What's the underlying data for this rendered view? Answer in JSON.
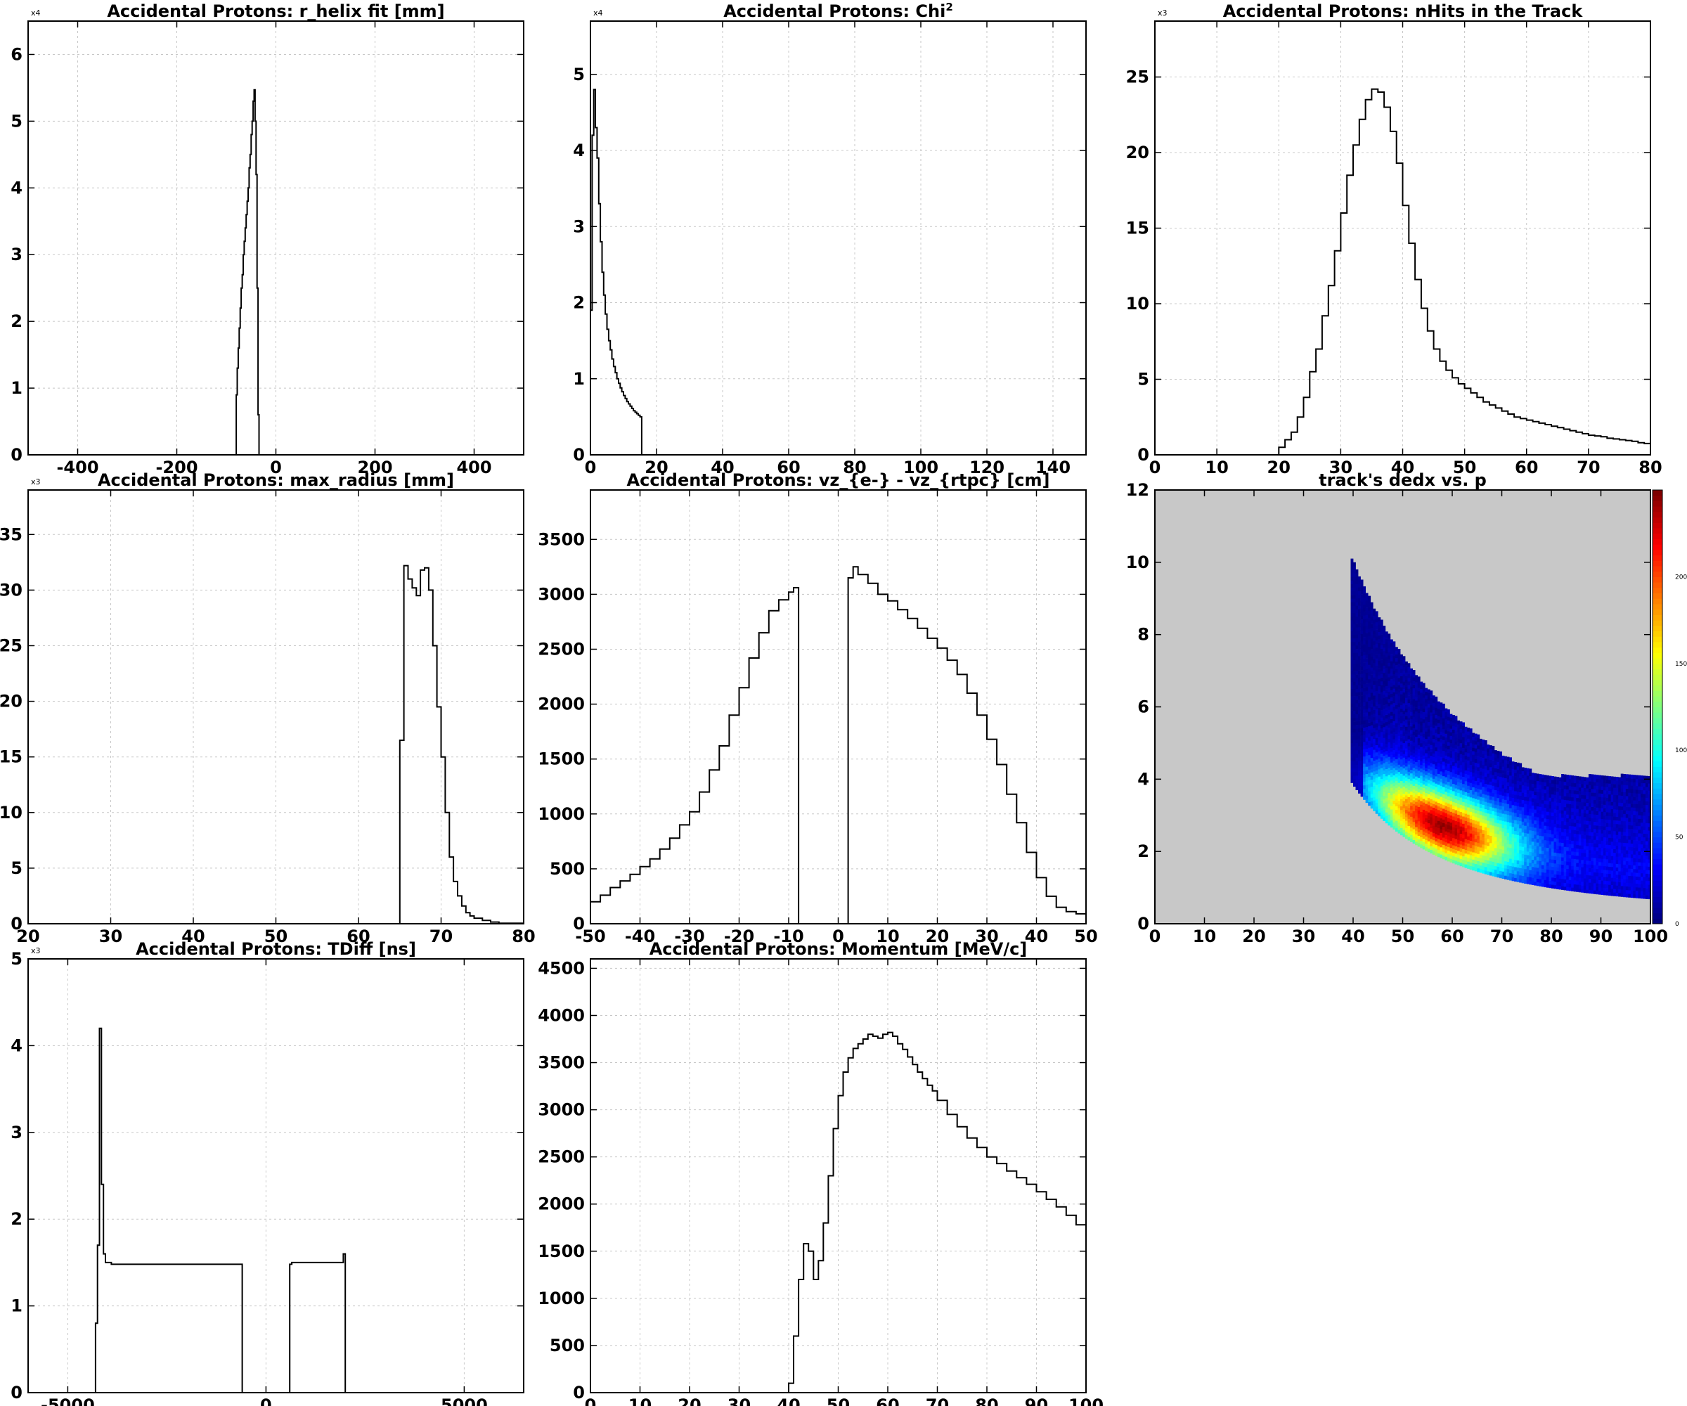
{
  "charts": [
    {
      "type": "step-histogram",
      "title": "Accidental Protons: r_helix fit [mm]",
      "multiplier": "x4",
      "xlim": [
        -500,
        500
      ],
      "ylim": [
        0,
        6.5
      ],
      "xticks": [
        "-400",
        "-200",
        "0",
        "200",
        "400"
      ],
      "yticks": [
        "0",
        "1",
        "2",
        "3",
        "4",
        "5",
        "6"
      ],
      "x": [
        -500,
        -82,
        -80,
        -78,
        -76,
        -74,
        -72,
        -70,
        -68,
        -66,
        -64,
        -62,
        -60,
        -58,
        -56,
        -54,
        -52,
        -50,
        -48,
        -46,
        -44,
        -42,
        -40,
        -38,
        -36,
        -34,
        -32,
        500
      ],
      "y": [
        0,
        0,
        0.9,
        1.3,
        1.6,
        1.9,
        2.2,
        2.5,
        2.7,
        3.0,
        3.2,
        3.4,
        3.6,
        3.8,
        4.0,
        4.3,
        4.5,
        4.8,
        5.0,
        5.3,
        5.47,
        5.0,
        4.2,
        2.5,
        0.6,
        0,
        0,
        0
      ]
    },
    {
      "type": "step-histogram",
      "title": "Accidental Protons: Chi",
      "title_sup": "2",
      "multiplier": "x4",
      "xlim": [
        0,
        150
      ],
      "ylim": [
        0,
        5.7
      ],
      "xticks": [
        "0",
        "20",
        "40",
        "60",
        "80",
        "100",
        "120",
        "140"
      ],
      "yticks": [
        "0",
        "1",
        "2",
        "3",
        "4",
        "5"
      ],
      "x": [
        0,
        0.5,
        1,
        1.5,
        2,
        2.5,
        3,
        3.5,
        4,
        4.5,
        5,
        5.5,
        6,
        6.5,
        7,
        7.5,
        8,
        8.5,
        9,
        9.5,
        10,
        10.5,
        11,
        11.5,
        12,
        12.5,
        13,
        13.5,
        14,
        14.5,
        15,
        15.5,
        16,
        150
      ],
      "y": [
        1.9,
        4.2,
        4.8,
        4.3,
        3.9,
        3.3,
        2.8,
        2.4,
        2.1,
        1.85,
        1.65,
        1.5,
        1.38,
        1.26,
        1.16,
        1.08,
        1.0,
        0.94,
        0.88,
        0.83,
        0.78,
        0.74,
        0.7,
        0.67,
        0.64,
        0.61,
        0.58,
        0.56,
        0.54,
        0.52,
        0.5,
        0,
        0,
        0
      ]
    },
    {
      "type": "step-histogram",
      "title": "Accidental Protons: nHits in the Track",
      "multiplier": "x3",
      "xlim": [
        0,
        80
      ],
      "ylim": [
        0,
        28.7
      ],
      "xticks": [
        "0",
        "10",
        "20",
        "30",
        "40",
        "50",
        "60",
        "70",
        "80"
      ],
      "yticks": [
        "0",
        "5",
        "10",
        "15",
        "20",
        "25"
      ],
      "x": [
        20,
        21,
        22,
        23,
        24,
        25,
        26,
        27,
        28,
        29,
        30,
        31,
        32,
        33,
        34,
        35,
        36,
        37,
        38,
        39,
        40,
        41,
        42,
        43,
        44,
        45,
        46,
        47,
        48,
        49,
        50,
        51,
        52,
        53,
        54,
        55,
        56,
        57,
        58,
        59,
        60,
        61,
        62,
        63,
        64,
        65,
        66,
        67,
        68,
        69,
        70,
        71,
        72,
        73,
        74,
        75,
        76,
        77,
        78,
        79,
        80
      ],
      "y": [
        0.5,
        1.0,
        1.5,
        2.5,
        3.8,
        5.5,
        7.0,
        9.2,
        11.2,
        13.5,
        16.0,
        18.5,
        20.5,
        22.2,
        23.5,
        24.2,
        24.0,
        23.0,
        21.4,
        19.3,
        16.5,
        14.0,
        11.6,
        9.7,
        8.2,
        7.0,
        6.2,
        5.6,
        5.1,
        4.7,
        4.4,
        4.1,
        3.8,
        3.5,
        3.3,
        3.1,
        2.9,
        2.7,
        2.5,
        2.4,
        2.3,
        2.2,
        2.1,
        2.0,
        1.9,
        1.8,
        1.7,
        1.6,
        1.5,
        1.4,
        1.3,
        1.25,
        1.2,
        1.1,
        1.05,
        1.0,
        0.95,
        0.9,
        0.8,
        0.75,
        0.7
      ]
    },
    {
      "type": "step-histogram",
      "title": "Accidental Protons: max_radius [mm]",
      "multiplier": "x3",
      "xlim": [
        20,
        80
      ],
      "ylim": [
        0,
        39
      ],
      "xticks": [
        "20",
        "30",
        "40",
        "50",
        "60",
        "70",
        "80"
      ],
      "yticks": [
        "0",
        "5",
        "10",
        "15",
        "20",
        "25",
        "30",
        "35"
      ],
      "x": [
        20,
        65,
        65.5,
        66,
        66.5,
        67,
        67.5,
        68,
        68.5,
        69,
        69.5,
        70,
        70.5,
        71,
        71.5,
        72,
        72.5,
        73,
        73.5,
        74,
        75,
        76,
        77,
        80
      ],
      "y": [
        0,
        16.5,
        32.2,
        31.0,
        30.2,
        29.5,
        31.8,
        32.0,
        30.0,
        25.0,
        19.5,
        15.0,
        10.0,
        6.0,
        3.8,
        2.5,
        1.6,
        1.0,
        0.7,
        0.5,
        0.3,
        0.15,
        0.05,
        0
      ]
    },
    {
      "type": "step-histogram",
      "title": "Accidental Protons: vz_{e-} - vz_{rtpc} [cm]",
      "xlim": [
        -50,
        50
      ],
      "ylim": [
        0,
        3950
      ],
      "xticks": [
        "-50",
        "-40",
        "-30",
        "-20",
        "-10",
        "0",
        "10",
        "20",
        "30",
        "40",
        "50"
      ],
      "yticks": [
        "0",
        "500",
        "1000",
        "1500",
        "2000",
        "2500",
        "3000",
        "3500"
      ],
      "x": [
        -50,
        -48,
        -46,
        -44,
        -42,
        -40,
        -38,
        -36,
        -34,
        -32,
        -30,
        -28,
        -26,
        -24,
        -22,
        -20,
        -18,
        -16,
        -14,
        -12,
        -10,
        -9,
        -8,
        2,
        3,
        4,
        6,
        8,
        10,
        12,
        14,
        16,
        18,
        20,
        22,
        24,
        26,
        28,
        30,
        32,
        34,
        36,
        38,
        40,
        42,
        44,
        46,
        48,
        50
      ],
      "y": [
        200,
        260,
        330,
        390,
        450,
        520,
        590,
        680,
        780,
        900,
        1020,
        1200,
        1400,
        1620,
        1900,
        2150,
        2420,
        2650,
        2850,
        2950,
        3020,
        3060,
        0,
        3150,
        3250,
        3180,
        3100,
        3000,
        2940,
        2860,
        2780,
        2690,
        2600,
        2510,
        2400,
        2270,
        2100,
        1900,
        1680,
        1450,
        1180,
        920,
        650,
        420,
        250,
        150,
        110,
        90,
        70
      ]
    },
    {
      "type": "heatmap",
      "title": "track's dedx vs. p",
      "xlim": [
        0,
        100
      ],
      "ylim": [
        0,
        12
      ],
      "xticks": [
        "0",
        "10",
        "20",
        "30",
        "40",
        "50",
        "60",
        "70",
        "80",
        "90",
        "100"
      ],
      "yticks": [
        "0",
        "2",
        "4",
        "6",
        "8",
        "10",
        "12"
      ],
      "zmax": 250,
      "colorbar_ticks": [
        "0",
        "50",
        "100",
        "150",
        "200"
      ],
      "background": "#c8c8c8",
      "colormap": [
        "#00007f",
        "#0000ff",
        "#007fff",
        "#00ffff",
        "#7fff7f",
        "#ffff00",
        "#ff7f00",
        "#ff0000",
        "#7f0000"
      ]
    },
    {
      "type": "step-histogram",
      "title": "Accidental Protons: TDiff [ns]",
      "multiplier": "x3",
      "xlim": [
        -6000,
        6500
      ],
      "ylim": [
        0,
        5
      ],
      "xticks": [
        "-5000",
        "0",
        "5000"
      ],
      "yticks": [
        "0",
        "1",
        "2",
        "3",
        "4",
        "5"
      ],
      "x": [
        -6000,
        -4300,
        -4250,
        -4200,
        -4150,
        -4100,
        -4050,
        -4000,
        -3950,
        -3900,
        -600,
        -550,
        600,
        650,
        1950,
        2000,
        6500
      ],
      "y": [
        0,
        0.8,
        1.7,
        4.2,
        2.4,
        1.6,
        1.5,
        1.5,
        1.5,
        1.48,
        0,
        0,
        1.48,
        1.5,
        1.6,
        0,
        0
      ]
    },
    {
      "type": "step-histogram",
      "title": "Accidental Protons: Momentum [MeV/c]",
      "xlim": [
        0,
        100
      ],
      "ylim": [
        0,
        4600
      ],
      "xticks": [
        "0",
        "10",
        "20",
        "30",
        "40",
        "50",
        "60",
        "70",
        "80",
        "90",
        "100"
      ],
      "yticks": [
        "0",
        "500",
        "1000",
        "1500",
        "2000",
        "2500",
        "3000",
        "3500",
        "4000",
        "4500"
      ],
      "x": [
        0,
        40,
        41,
        42,
        43,
        44,
        45,
        46,
        47,
        48,
        49,
        50,
        51,
        52,
        53,
        54,
        55,
        56,
        57,
        58,
        59,
        60,
        61,
        62,
        63,
        64,
        65,
        66,
        67,
        68,
        69,
        70,
        72,
        74,
        76,
        78,
        80,
        82,
        84,
        86,
        88,
        90,
        92,
        94,
        96,
        98,
        100
      ],
      "y": [
        0,
        100,
        600,
        1200,
        1580,
        1500,
        1200,
        1400,
        1800,
        2300,
        2800,
        3150,
        3400,
        3550,
        3650,
        3700,
        3750,
        3800,
        3780,
        3760,
        3800,
        3820,
        3780,
        3700,
        3640,
        3560,
        3480,
        3400,
        3330,
        3260,
        3200,
        3100,
        2950,
        2820,
        2700,
        2600,
        2500,
        2430,
        2350,
        2280,
        2210,
        2130,
        2050,
        1970,
        1880,
        1780,
        1650
      ]
    }
  ]
}
